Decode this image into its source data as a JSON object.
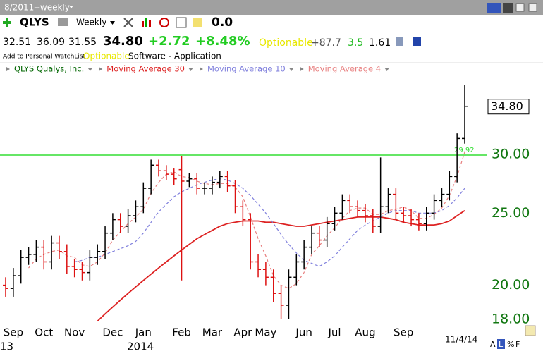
{
  "toolbar": {
    "period": "8/2011--weekly",
    "symbol": "QLYS",
    "interval": "Weekly",
    "value": "0.0"
  },
  "quote": {
    "open": "32.51",
    "high": "36.09",
    "low": "31.55",
    "last": "34.80",
    "change": "+2.72",
    "change_pct": "+8.48%",
    "optionable": "Optionable",
    "stat1": "+87.7",
    "stat2": "3.5",
    "stat3": "1.61"
  },
  "info": {
    "watchlist": "Add to Personal WatchList",
    "optionable": "Optionable",
    "industry": "Software - Application"
  },
  "footer": {
    "year1": "13",
    "year2": "2014",
    "date": "11/4/14",
    "buttons": [
      "A",
      "L",
      "%",
      "F"
    ]
  },
  "chart_data": {
    "type": "ohlc",
    "log_y": true,
    "ylim": [
      17.84,
      38.2
    ],
    "yticks": [
      {
        "value": 18,
        "label": "18.00"
      },
      {
        "value": 20,
        "label": "20.00"
      },
      {
        "value": 25,
        "label": "25.00"
      },
      {
        "value": 30,
        "label": "30.00"
      }
    ],
    "categories": [
      null,
      "Sep",
      null,
      null,
      null,
      "Oct",
      null,
      null,
      null,
      "Nov",
      null,
      null,
      null,
      null,
      "Dec",
      null,
      null,
      null,
      "Jan",
      null,
      null,
      null,
      null,
      "Feb",
      null,
      null,
      null,
      "Mar",
      null,
      null,
      null,
      "Apr",
      null,
      null,
      "May",
      null,
      null,
      null,
      null,
      "Jun",
      null,
      null,
      null,
      "Jul",
      null,
      null,
      null,
      "Aug",
      null,
      null,
      null,
      null,
      "Sep",
      null,
      null,
      null,
      null,
      null,
      null,
      null,
      null
    ],
    "last_price_label": "34.80",
    "hline": {
      "value": 29.92,
      "color": "#33dd33"
    },
    "series": [
      {
        "name": "QLYS Qualys, Inc.",
        "type": "ohlc",
        "color": "#000000",
        "down_color": "#dd1111",
        "legend_color": "#006600",
        "open": [
          20.0,
          19.8,
          20.6,
          21.8,
          22.0,
          22.5,
          21.5,
          22.8,
          22.2,
          21.2,
          21.0,
          20.8,
          21.8,
          22.2,
          23.5,
          24.5,
          24.0,
          24.8,
          25.5,
          27.0,
          29.0,
          28.5,
          28.2,
          28.6,
          27.6,
          27.8,
          27.0,
          27.0,
          27.5,
          28.0,
          27.2,
          25.5,
          24.5,
          21.5,
          21.0,
          20.5,
          19.5,
          18.8,
          20.5,
          21.5,
          22.5,
          23.5,
          23.0,
          24.2,
          25.0,
          26.0,
          25.5,
          25.2,
          24.8,
          24.0,
          25.5,
          26.5,
          25.0,
          24.8,
          24.5,
          24.2,
          25.0,
          26.0,
          26.5,
          28.0,
          31.5
        ],
        "high": [
          20.5,
          21.1,
          22.3,
          22.5,
          23.0,
          23.0,
          23.3,
          23.3,
          22.7,
          21.7,
          21.5,
          22.3,
          22.7,
          24.0,
          25.0,
          25.0,
          25.3,
          26.0,
          27.5,
          29.5,
          29.5,
          29.0,
          28.7,
          29.8,
          28.3,
          28.3,
          27.5,
          28.0,
          28.5,
          28.5,
          27.7,
          26.0,
          25.0,
          22.0,
          21.5,
          21.0,
          20.0,
          21.0,
          22.0,
          23.0,
          24.0,
          24.0,
          24.7,
          25.5,
          26.5,
          26.5,
          26.0,
          25.7,
          25.3,
          29.7,
          27.0,
          27.0,
          25.5,
          25.3,
          25.0,
          25.5,
          26.5,
          27.0,
          28.5,
          32.0,
          37.2
        ],
        "low": [
          19.3,
          19.3,
          20.1,
          21.3,
          21.5,
          21.0,
          21.0,
          21.7,
          20.7,
          20.5,
          20.3,
          20.3,
          21.3,
          21.7,
          23.0,
          23.5,
          23.5,
          24.3,
          25.0,
          26.5,
          28.0,
          27.7,
          27.3,
          20.3,
          27.1,
          26.5,
          26.5,
          26.5,
          27.0,
          26.7,
          25.0,
          24.0,
          21.0,
          20.5,
          20.0,
          19.0,
          18.0,
          18.0,
          20.0,
          21.0,
          22.0,
          22.5,
          22.5,
          23.7,
          24.5,
          25.0,
          24.7,
          24.3,
          23.5,
          23.5,
          25.0,
          24.5,
          24.3,
          24.0,
          23.7,
          23.7,
          24.5,
          25.5,
          26.0,
          27.5,
          31.0
        ],
        "close": [
          19.8,
          20.6,
          21.8,
          22.0,
          22.5,
          21.5,
          22.8,
          22.2,
          21.2,
          21.0,
          20.8,
          21.8,
          22.2,
          23.5,
          24.5,
          24.0,
          24.8,
          25.5,
          27.0,
          29.0,
          28.5,
          28.2,
          27.8,
          27.6,
          27.8,
          27.0,
          27.0,
          27.5,
          28.0,
          27.2,
          25.5,
          24.5,
          21.5,
          21.0,
          20.5,
          19.5,
          18.8,
          20.5,
          21.5,
          22.5,
          23.5,
          23.0,
          24.2,
          25.0,
          26.0,
          25.5,
          25.2,
          24.8,
          24.0,
          25.5,
          26.5,
          25.0,
          24.8,
          24.5,
          24.2,
          25.0,
          26.0,
          26.5,
          28.0,
          31.5,
          34.8
        ]
      },
      {
        "name": "Moving Average 30",
        "type": "line",
        "color": "#dd2222",
        "dashed": false,
        "values": [
          null,
          null,
          null,
          null,
          null,
          null,
          null,
          null,
          null,
          null,
          null,
          null,
          17.9,
          18.3,
          18.7,
          19.1,
          19.5,
          19.9,
          20.3,
          20.7,
          21.1,
          21.5,
          21.9,
          22.3,
          22.7,
          23.1,
          23.4,
          23.7,
          24.0,
          24.2,
          24.3,
          24.4,
          24.4,
          24.4,
          24.3,
          24.3,
          24.2,
          24.1,
          24.0,
          24.0,
          24.1,
          24.2,
          24.3,
          24.4,
          24.5,
          24.6,
          24.7,
          24.7,
          24.7,
          24.7,
          24.6,
          24.5,
          24.3,
          24.2,
          24.1,
          24.1,
          24.1,
          24.2,
          24.4,
          24.8,
          25.2
        ]
      },
      {
        "name": "Moving Average 10",
        "type": "line",
        "color": "#8080dd",
        "dashed": true,
        "values": [
          null,
          null,
          null,
          null,
          null,
          null,
          null,
          null,
          null,
          21.5,
          21.6,
          21.8,
          21.8,
          22.0,
          22.2,
          22.4,
          22.6,
          22.9,
          23.5,
          24.3,
          25.1,
          25.7,
          26.3,
          26.7,
          27.0,
          27.3,
          27.5,
          27.7,
          27.8,
          27.7,
          27.4,
          27.0,
          26.4,
          25.7,
          25.0,
          24.2,
          23.4,
          22.7,
          22.1,
          21.6,
          21.4,
          21.2,
          21.5,
          21.9,
          22.5,
          23.1,
          23.7,
          24.1,
          24.4,
          24.7,
          25.0,
          25.2,
          25.2,
          25.2,
          25.0,
          25.0,
          25.0,
          25.2,
          25.6,
          26.2,
          27.0
        ]
      },
      {
        "name": "Moving Average 4",
        "type": "line",
        "color": "#e88080",
        "dashed": true,
        "values": [
          null,
          null,
          null,
          21.1,
          21.7,
          22.0,
          22.2,
          22.3,
          21.9,
          21.8,
          21.3,
          21.2,
          21.5,
          22.1,
          23.0,
          23.6,
          24.2,
          24.7,
          25.3,
          26.6,
          27.5,
          28.2,
          28.4,
          28.0,
          27.9,
          27.6,
          27.4,
          27.3,
          27.4,
          27.4,
          27.1,
          26.3,
          24.7,
          23.1,
          21.9,
          20.6,
          20.0,
          19.8,
          20.1,
          20.8,
          22.0,
          22.6,
          23.3,
          23.9,
          24.6,
          25.2,
          25.4,
          25.4,
          24.9,
          24.9,
          25.2,
          25.3,
          25.5,
          25.2,
          24.6,
          24.6,
          24.9,
          25.4,
          26.4,
          28.0,
          30.2
        ]
      }
    ]
  }
}
